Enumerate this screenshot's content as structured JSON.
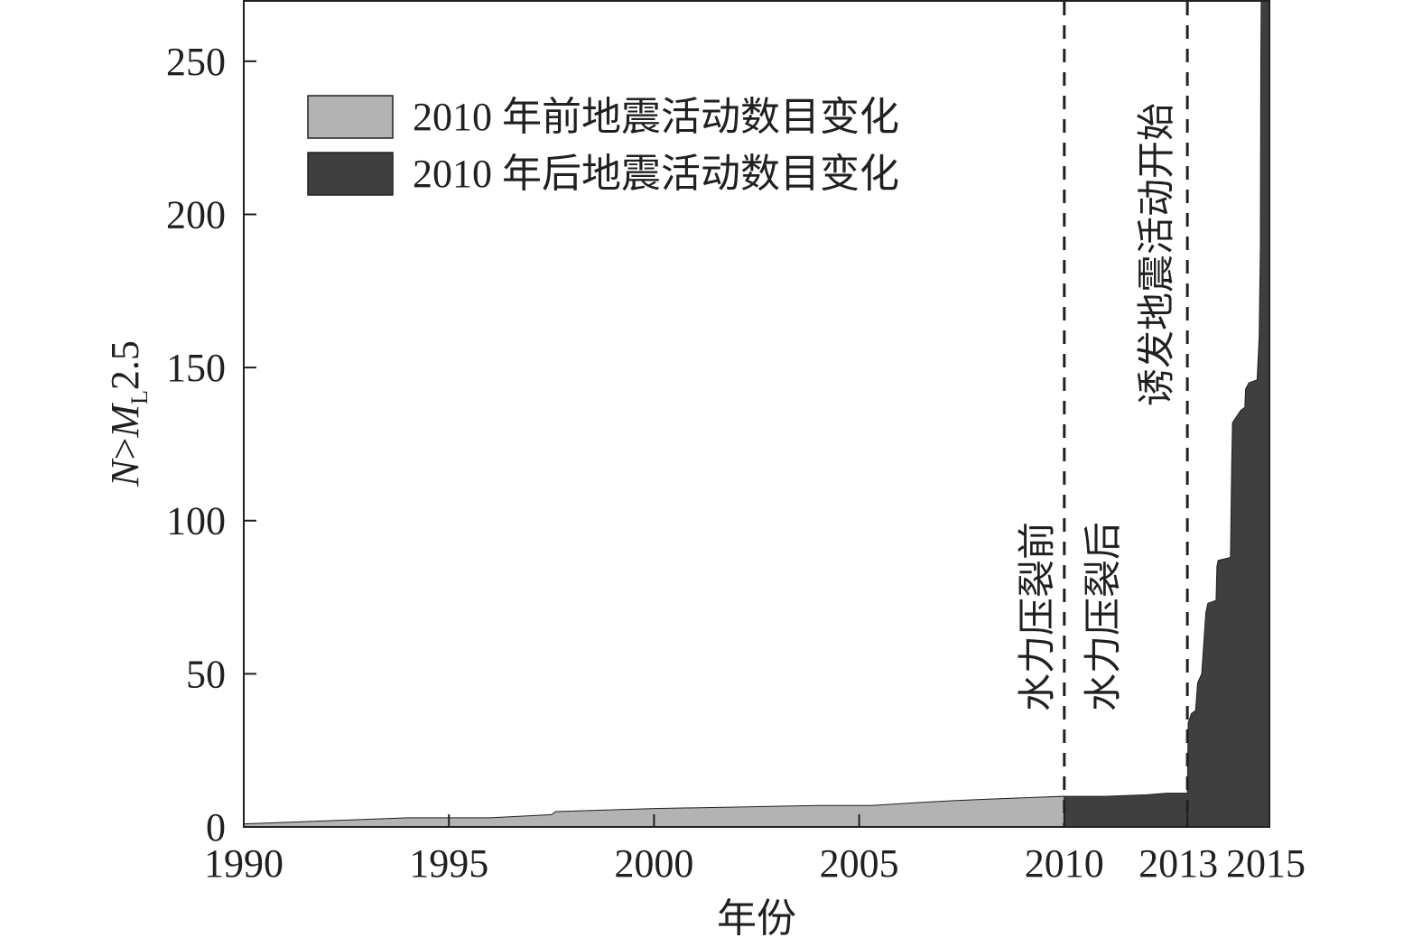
{
  "chart_data": {
    "type": "area",
    "title": "",
    "xlabel": "年份",
    "ylabel": {
      "prefix": "N>M",
      "subscript": "L",
      "suffix": "2.5"
    },
    "xlim": [
      1990,
      2015
    ],
    "ylim": [
      0,
      270
    ],
    "xticks": [
      {
        "value": 1990,
        "label": "1990"
      },
      {
        "value": 1995,
        "label": "1995"
      },
      {
        "value": 2000,
        "label": "2000"
      },
      {
        "value": 2005,
        "label": "2005"
      },
      {
        "value": 2010,
        "label": "2010"
      },
      {
        "value": 2013,
        "label": "2013"
      },
      {
        "value": 2015,
        "label": "2015"
      }
    ],
    "yticks": [
      {
        "value": 0,
        "label": "0"
      },
      {
        "value": 50,
        "label": "50"
      },
      {
        "value": 100,
        "label": "100"
      },
      {
        "value": 150,
        "label": "150"
      },
      {
        "value": 200,
        "label": "200"
      },
      {
        "value": 250,
        "label": "250"
      }
    ],
    "series": [
      {
        "name": "2010 年前地震活动数目变化",
        "color": "#b3b3b3",
        "points": [
          [
            1990.0,
            1
          ],
          [
            1992.0,
            2
          ],
          [
            1994.0,
            3
          ],
          [
            1996.0,
            3
          ],
          [
            1997.5,
            4
          ],
          [
            1997.6,
            5
          ],
          [
            2000.0,
            6
          ],
          [
            2002.0,
            6.5
          ],
          [
            2004.0,
            7
          ],
          [
            2005.3,
            7
          ],
          [
            2006.5,
            8
          ],
          [
            2007.2,
            8.5
          ],
          [
            2008.0,
            9
          ],
          [
            2009.0,
            9.5
          ],
          [
            2010.0,
            10
          ]
        ]
      },
      {
        "name": "2010 年后地震活动数目变化",
        "color": "#3f3f3f",
        "points": [
          [
            2010.0,
            10
          ],
          [
            2011.0,
            10
          ],
          [
            2012.0,
            10.5
          ],
          [
            2012.5,
            11
          ],
          [
            2012.8,
            11
          ],
          [
            2013.0,
            11
          ],
          [
            2013.02,
            34
          ],
          [
            2013.1,
            37
          ],
          [
            2013.2,
            38
          ],
          [
            2013.25,
            47
          ],
          [
            2013.35,
            50
          ],
          [
            2013.4,
            60
          ],
          [
            2013.45,
            70
          ],
          [
            2013.5,
            73
          ],
          [
            2013.7,
            74
          ],
          [
            2013.72,
            85
          ],
          [
            2013.75,
            87
          ],
          [
            2014.05,
            88
          ],
          [
            2014.08,
            118
          ],
          [
            2014.1,
            132
          ],
          [
            2014.2,
            134
          ],
          [
            2014.3,
            136
          ],
          [
            2014.4,
            137
          ],
          [
            2014.42,
            143
          ],
          [
            2014.5,
            145
          ],
          [
            2014.7,
            146
          ],
          [
            2014.75,
            160
          ],
          [
            2014.78,
            190
          ],
          [
            2014.79,
            250
          ],
          [
            2014.8,
            270
          ],
          [
            2015.0,
            270
          ]
        ]
      }
    ],
    "legend": {
      "position": "top-left"
    },
    "reference_lines": [
      {
        "x": 2010,
        "style": "dashed",
        "labels": [
          "水力压裂前",
          "水力压裂后"
        ]
      },
      {
        "x": 2013,
        "style": "dashed",
        "labels": [
          "诱发地震活动开始"
        ]
      }
    ],
    "grid": false
  }
}
